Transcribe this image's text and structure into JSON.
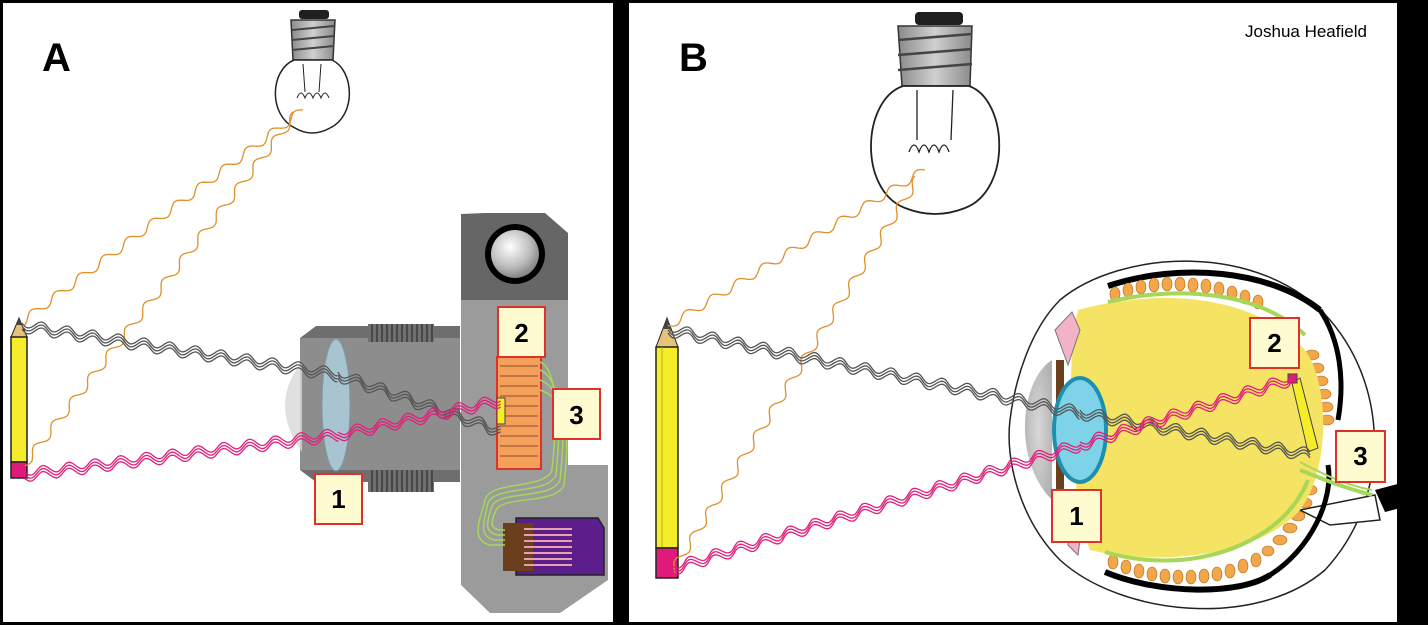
{
  "credit": "Joshua Heafield",
  "panels": [
    {
      "letter": "A",
      "labels": [
        "1",
        "2",
        "3"
      ]
    },
    {
      "letter": "B",
      "labels": [
        "1",
        "2",
        "3"
      ]
    }
  ],
  "colors": {
    "light_ray": "#e0902a",
    "pencil_tip_ray": "#555555",
    "pencil_eraser_ray": "#e0207a",
    "nerve": "#a6d65a",
    "label_fill": "#fffbd0",
    "label_border": "#e0302a",
    "pencil_body": "#f5ec2a",
    "eraser": "#e01a78",
    "camera_body": "#999999",
    "lens": "#aacbd8",
    "eyeball": "#f5e463",
    "eye_lens": "#7fd3e8",
    "sensor": "#f5a05a",
    "sd_card": "#5b1e8a"
  },
  "icons": [
    "light-bulb-icon",
    "pencil-icon",
    "camera-icon",
    "eye-icon",
    "sd-card-icon"
  ]
}
